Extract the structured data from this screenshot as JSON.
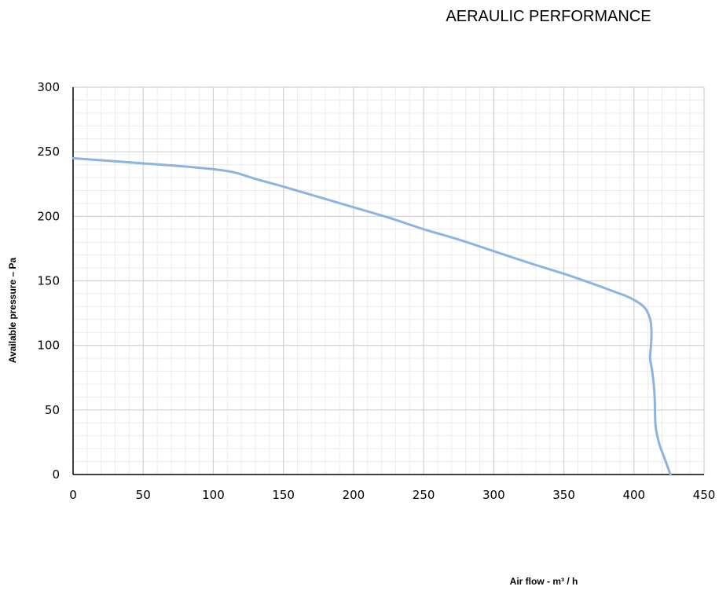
{
  "chart_data": {
    "type": "line",
    "title": "AERAULIC PERFORMANCE",
    "xlabel": "Air flow - m³ / h",
    "ylabel": "Available pressure – Pa",
    "xlim": [
      0,
      450
    ],
    "ylim": [
      0,
      300
    ],
    "x_ticks": [
      "0",
      "50",
      "100",
      "150",
      "200",
      "250",
      "300",
      "350",
      "400",
      "450"
    ],
    "y_ticks": [
      "0",
      "50",
      "100",
      "150",
      "200",
      "250",
      "300"
    ],
    "grid": true,
    "legend": "none",
    "series": [
      {
        "color": "#8db3e2",
        "points": [
          [
            0,
            245
          ],
          [
            25,
            243
          ],
          [
            50,
            241
          ],
          [
            75,
            239
          ],
          [
            100,
            236.5
          ],
          [
            115,
            234
          ],
          [
            130,
            229
          ],
          [
            150,
            223
          ],
          [
            175,
            215
          ],
          [
            200,
            207
          ],
          [
            225,
            199
          ],
          [
            250,
            190
          ],
          [
            275,
            182
          ],
          [
            300,
            173
          ],
          [
            325,
            164
          ],
          [
            350,
            155.5
          ],
          [
            370,
            148
          ],
          [
            385,
            142
          ],
          [
            395,
            138
          ],
          [
            402,
            134
          ],
          [
            407,
            130
          ],
          [
            410,
            125
          ],
          [
            412,
            118
          ],
          [
            412.5,
            108
          ],
          [
            412,
            98
          ],
          [
            411.5,
            90
          ],
          [
            413,
            80
          ],
          [
            414.5,
            65
          ],
          [
            415,
            50
          ],
          [
            415.5,
            37
          ],
          [
            418,
            24
          ],
          [
            422,
            12
          ],
          [
            426,
            0
          ]
        ]
      }
    ]
  }
}
